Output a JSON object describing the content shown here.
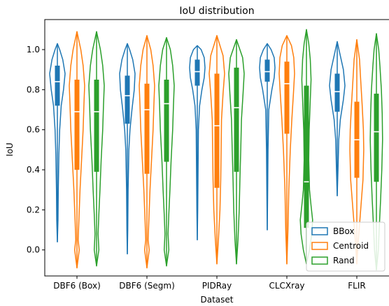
{
  "chart_data": {
    "type": "violin",
    "title": "IoU distribution",
    "xlabel": "Dataset",
    "ylabel": "IoU",
    "categories": [
      "DBF6 (Box)",
      "DBF6 (Segm)",
      "PIDRay",
      "CLCXray",
      "FLIR"
    ],
    "ylim": [
      -0.13,
      1.15
    ],
    "yticks": [
      0.0,
      0.2,
      0.4,
      0.6,
      0.8,
      1.0
    ],
    "ytick_labels": [
      "0.0",
      "0.2",
      "0.4",
      "0.6",
      "0.8",
      "1.0"
    ],
    "grid": false,
    "legend_position": "lower right",
    "series": [
      {
        "name": "BBox",
        "color": "#1f77b4",
        "stats": [
          {
            "min": 0.04,
            "q1": 0.72,
            "median": 0.84,
            "q3": 0.92,
            "max": 1.03,
            "modes": [
              [
                0.04,
                0.0
              ],
              [
                0.15,
                0.08
              ],
              [
                0.3,
                0.12
              ],
              [
                0.48,
                0.2
              ],
              [
                0.6,
                0.3
              ],
              [
                0.72,
                0.5
              ],
              [
                0.8,
                0.8
              ],
              [
                0.88,
                1.0
              ],
              [
                0.95,
                0.7
              ],
              [
                1.0,
                0.3
              ],
              [
                1.03,
                0.0
              ]
            ]
          },
          {
            "min": -0.02,
            "q1": 0.63,
            "median": 0.77,
            "q3": 0.87,
            "max": 1.03,
            "modes": [
              [
                -0.02,
                0.0
              ],
              [
                0.1,
                0.05
              ],
              [
                0.3,
                0.1
              ],
              [
                0.5,
                0.2
              ],
              [
                0.6,
                0.35
              ],
              [
                0.7,
                0.6
              ],
              [
                0.8,
                0.9
              ],
              [
                0.88,
                1.0
              ],
              [
                0.95,
                0.7
              ],
              [
                1.0,
                0.3
              ],
              [
                1.03,
                0.0
              ]
            ]
          },
          {
            "min": 0.05,
            "q1": 0.82,
            "median": 0.89,
            "q3": 0.95,
            "max": 1.02,
            "modes": [
              [
                0.05,
                0.0
              ],
              [
                0.2,
                0.05
              ],
              [
                0.4,
                0.1
              ],
              [
                0.6,
                0.15
              ],
              [
                0.72,
                0.3
              ],
              [
                0.8,
                0.6
              ],
              [
                0.86,
                0.9
              ],
              [
                0.91,
                1.0
              ],
              [
                0.96,
                0.9
              ],
              [
                1.0,
                0.5
              ],
              [
                1.02,
                0.0
              ]
            ]
          },
          {
            "min": 0.1,
            "q1": 0.84,
            "median": 0.89,
            "q3": 0.95,
            "max": 1.03,
            "modes": [
              [
                0.1,
                0.0
              ],
              [
                0.3,
                0.05
              ],
              [
                0.5,
                0.1
              ],
              [
                0.7,
                0.2
              ],
              [
                0.8,
                0.6
              ],
              [
                0.86,
                0.9
              ],
              [
                0.91,
                1.0
              ],
              [
                0.96,
                0.9
              ],
              [
                1.0,
                0.5
              ],
              [
                1.03,
                0.0
              ]
            ]
          },
          {
            "min": 0.27,
            "q1": 0.69,
            "median": 0.79,
            "q3": 0.88,
            "max": 1.04,
            "modes": [
              [
                0.27,
                0.0
              ],
              [
                0.4,
                0.1
              ],
              [
                0.55,
                0.2
              ],
              [
                0.65,
                0.4
              ],
              [
                0.75,
                0.8
              ],
              [
                0.82,
                1.0
              ],
              [
                0.9,
                0.8
              ],
              [
                0.97,
                0.4
              ],
              [
                1.04,
                0.0
              ]
            ]
          }
        ]
      },
      {
        "name": "Centroid",
        "color": "#ff7f0e",
        "stats": [
          {
            "min": -0.09,
            "q1": 0.4,
            "median": 0.69,
            "q3": 0.85,
            "max": 1.09,
            "modes": [
              [
                -0.09,
                0.0
              ],
              [
                0.0,
                0.3
              ],
              [
                0.05,
                0.15
              ],
              [
                0.15,
                0.25
              ],
              [
                0.3,
                0.4
              ],
              [
                0.45,
                0.6
              ],
              [
                0.6,
                0.8
              ],
              [
                0.72,
                0.9
              ],
              [
                0.82,
                1.0
              ],
              [
                0.92,
                0.8
              ],
              [
                1.0,
                0.5
              ],
              [
                1.09,
                0.0
              ]
            ]
          },
          {
            "min": -0.09,
            "q1": 0.38,
            "median": 0.7,
            "q3": 0.83,
            "max": 1.07,
            "modes": [
              [
                -0.09,
                0.0
              ],
              [
                0.0,
                0.3
              ],
              [
                0.05,
                0.15
              ],
              [
                0.15,
                0.25
              ],
              [
                0.3,
                0.4
              ],
              [
                0.45,
                0.6
              ],
              [
                0.6,
                0.8
              ],
              [
                0.72,
                0.9
              ],
              [
                0.82,
                1.0
              ],
              [
                0.92,
                0.8
              ],
              [
                1.0,
                0.5
              ],
              [
                1.07,
                0.0
              ]
            ]
          },
          {
            "min": -0.07,
            "q1": 0.31,
            "median": 0.62,
            "q3": 0.88,
            "max": 1.07,
            "modes": [
              [
                -0.07,
                0.0
              ],
              [
                0.05,
                0.2
              ],
              [
                0.2,
                0.4
              ],
              [
                0.35,
                0.5
              ],
              [
                0.5,
                0.55
              ],
              [
                0.65,
                0.6
              ],
              [
                0.78,
                0.8
              ],
              [
                0.88,
                1.0
              ],
              [
                0.97,
                0.8
              ],
              [
                1.07,
                0.0
              ]
            ]
          },
          {
            "min": -0.07,
            "q1": 0.58,
            "median": 0.83,
            "q3": 0.94,
            "max": 1.07,
            "modes": [
              [
                -0.07,
                0.0
              ],
              [
                0.1,
                0.15
              ],
              [
                0.3,
                0.25
              ],
              [
                0.5,
                0.45
              ],
              [
                0.65,
                0.65
              ],
              [
                0.78,
                0.85
              ],
              [
                0.88,
                1.0
              ],
              [
                0.96,
                0.9
              ],
              [
                1.02,
                0.6
              ],
              [
                1.07,
                0.0
              ]
            ]
          },
          {
            "min": -0.07,
            "q1": 0.36,
            "median": 0.55,
            "q3": 0.74,
            "max": 1.05,
            "modes": [
              [
                -0.07,
                0.0
              ],
              [
                0.05,
                0.2
              ],
              [
                0.2,
                0.5
              ],
              [
                0.35,
                0.8
              ],
              [
                0.5,
                0.9
              ],
              [
                0.6,
                0.85
              ],
              [
                0.72,
                0.7
              ],
              [
                0.85,
                0.5
              ],
              [
                0.95,
                0.35
              ],
              [
                1.05,
                0.0
              ]
            ]
          }
        ]
      },
      {
        "name": "Rand",
        "color": "#2ca02c",
        "stats": [
          {
            "min": -0.08,
            "q1": 0.39,
            "median": 0.69,
            "q3": 0.85,
            "max": 1.09,
            "modes": [
              [
                -0.08,
                0.0
              ],
              [
                0.0,
                0.3
              ],
              [
                0.08,
                0.2
              ],
              [
                0.18,
                0.3
              ],
              [
                0.3,
                0.45
              ],
              [
                0.45,
                0.6
              ],
              [
                0.6,
                0.8
              ],
              [
                0.72,
                0.9
              ],
              [
                0.82,
                1.0
              ],
              [
                0.92,
                0.8
              ],
              [
                1.0,
                0.5
              ],
              [
                1.09,
                0.0
              ]
            ]
          },
          {
            "min": -0.08,
            "q1": 0.44,
            "median": 0.73,
            "q3": 0.85,
            "max": 1.06,
            "modes": [
              [
                -0.08,
                0.0
              ],
              [
                0.0,
                0.3
              ],
              [
                0.08,
                0.2
              ],
              [
                0.18,
                0.3
              ],
              [
                0.3,
                0.45
              ],
              [
                0.45,
                0.6
              ],
              [
                0.6,
                0.8
              ],
              [
                0.72,
                0.9
              ],
              [
                0.82,
                1.0
              ],
              [
                0.92,
                0.8
              ],
              [
                1.0,
                0.5
              ],
              [
                1.06,
                0.0
              ]
            ]
          },
          {
            "min": -0.07,
            "q1": 0.39,
            "median": 0.71,
            "q3": 0.91,
            "max": 1.05,
            "modes": [
              [
                -0.07,
                0.0
              ],
              [
                0.05,
                0.2
              ],
              [
                0.2,
                0.35
              ],
              [
                0.35,
                0.45
              ],
              [
                0.5,
                0.55
              ],
              [
                0.65,
                0.65
              ],
              [
                0.78,
                0.85
              ],
              [
                0.88,
                1.0
              ],
              [
                0.96,
                0.8
              ],
              [
                1.05,
                0.0
              ]
            ]
          },
          {
            "min": -0.07,
            "q1": 0.11,
            "median": 0.34,
            "q3": 0.82,
            "max": 1.1,
            "modes": [
              [
                -0.07,
                0.0
              ],
              [
                0.0,
                0.4
              ],
              [
                0.08,
                0.7
              ],
              [
                0.15,
                0.8
              ],
              [
                0.22,
                0.6
              ],
              [
                0.3,
                0.4
              ],
              [
                0.45,
                0.3
              ],
              [
                0.6,
                0.35
              ],
              [
                0.75,
                0.5
              ],
              [
                0.85,
                0.6
              ],
              [
                0.95,
                0.5
              ],
              [
                1.03,
                0.3
              ],
              [
                1.1,
                0.0
              ]
            ]
          },
          {
            "min": -0.1,
            "q1": 0.34,
            "median": 0.59,
            "q3": 0.78,
            "max": 1.08,
            "modes": [
              [
                -0.1,
                0.0
              ],
              [
                0.0,
                0.25
              ],
              [
                0.1,
                0.35
              ],
              [
                0.25,
                0.55
              ],
              [
                0.4,
                0.7
              ],
              [
                0.55,
                0.8
              ],
              [
                0.68,
                0.75
              ],
              [
                0.8,
                0.65
              ],
              [
                0.92,
                0.45
              ],
              [
                1.0,
                0.3
              ],
              [
                1.08,
                0.0
              ]
            ]
          }
        ]
      }
    ]
  }
}
